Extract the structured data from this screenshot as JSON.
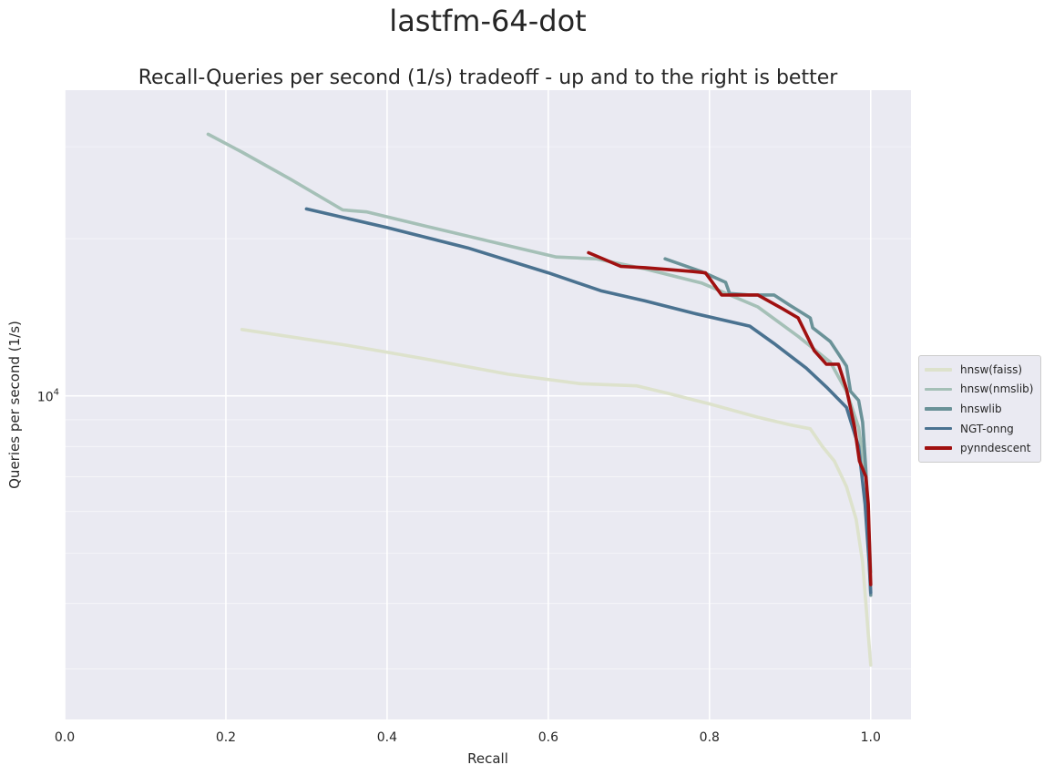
{
  "suptitle": "lastfm-64-dot",
  "chart_data": {
    "type": "line",
    "title": "Recall-Queries per second (1/s) tradeoff - up and to the right is better",
    "xlabel": "Recall",
    "ylabel": "Queries per second (1/s)",
    "xlim": [
      0.0,
      1.05
    ],
    "ylim": [
      2400,
      38500
    ],
    "yscale": "log",
    "x_ticks": [
      "0.0",
      "0.2",
      "0.4",
      "0.6",
      "0.8",
      "1.0"
    ],
    "y_ticks": [
      {
        "base": "10",
        "exp": "4",
        "value": 10000
      }
    ],
    "grid": true,
    "legend_position": "right",
    "series": [
      {
        "name": "hnsw(faiss)",
        "color": "#dde2cc",
        "x": [
          0.22,
          0.35,
          0.45,
          0.55,
          0.64,
          0.71,
          0.75,
          0.8,
          0.86,
          0.9,
          0.925,
          0.94,
          0.955,
          0.97,
          0.982,
          0.99,
          0.994,
          0.997,
          1.0
        ],
        "y": [
          13400,
          12500,
          11750,
          11000,
          10550,
          10450,
          10100,
          9650,
          9100,
          8800,
          8650,
          8000,
          7500,
          6700,
          5800,
          4800,
          4000,
          3500,
          3050
        ]
      },
      {
        "name": "hnsw(nmslib)",
        "color": "#a5c0b7",
        "x": [
          0.178,
          0.22,
          0.28,
          0.345,
          0.375,
          0.45,
          0.55,
          0.61,
          0.66,
          0.72,
          0.79,
          0.86,
          0.91,
          0.95,
          0.97,
          0.985,
          0.995,
          1.0
        ],
        "y": [
          31700,
          29300,
          26000,
          22700,
          22500,
          21100,
          19400,
          18450,
          18300,
          17500,
          16450,
          14800,
          13000,
          11600,
          10200,
          8700,
          6800,
          4600
        ]
      },
      {
        "name": "hnswlib",
        "color": "#6a9298",
        "x": [
          0.745,
          0.79,
          0.82,
          0.825,
          0.85,
          0.88,
          0.9,
          0.925,
          0.928,
          0.95,
          0.97,
          0.975,
          0.985,
          0.99,
          0.994,
          0.997,
          1.0
        ],
        "y": [
          18300,
          17300,
          16500,
          15700,
          15600,
          15600,
          14900,
          14100,
          13500,
          12700,
          11400,
          10200,
          9800,
          8900,
          7200,
          5500,
          4150
        ]
      },
      {
        "name": "NGT-onng",
        "color": "#4a7290",
        "x": [
          0.3,
          0.4,
          0.5,
          0.6,
          0.665,
          0.72,
          0.78,
          0.85,
          0.88,
          0.92,
          0.945,
          0.97,
          0.985,
          0.993,
          0.998,
          1.0
        ],
        "y": [
          22800,
          21000,
          19200,
          17200,
          15900,
          15200,
          14400,
          13600,
          12600,
          11300,
          10400,
          9500,
          8000,
          6200,
          4800,
          4200
        ]
      },
      {
        "name": "pynndescent",
        "color": "#a01010",
        "x": [
          0.65,
          0.69,
          0.72,
          0.78,
          0.795,
          0.815,
          0.84,
          0.86,
          0.89,
          0.91,
          0.93,
          0.945,
          0.96,
          0.97,
          0.98,
          0.986,
          0.994,
          0.997,
          1.0
        ],
        "y": [
          18800,
          17700,
          17600,
          17300,
          17200,
          15600,
          15600,
          15600,
          14700,
          14100,
          12200,
          11500,
          11500,
          10300,
          8700,
          7500,
          7000,
          6200,
          4350
        ]
      }
    ]
  }
}
